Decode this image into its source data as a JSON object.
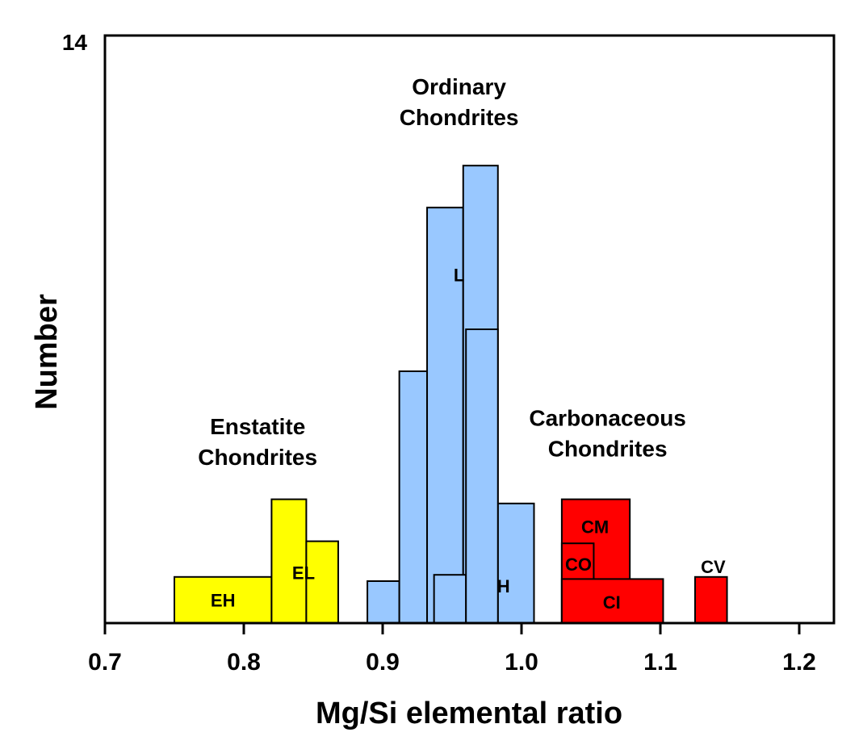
{
  "chart_data": {
    "type": "histogram",
    "title": "",
    "xlabel": "Mg/Si elemental ratio",
    "ylabel": "Number",
    "xlim": [
      0.7,
      1.225
    ],
    "ylim": [
      0,
      14
    ],
    "y_tick_labels": [
      "14"
    ],
    "x_tick_labels": [
      "0.7",
      "0.8",
      "0.9",
      "1.0",
      "1.1",
      "1.2"
    ],
    "x_ticks": [
      0.7,
      0.8,
      0.9,
      1.0,
      1.1,
      1.2
    ],
    "grid": false,
    "groups": [
      {
        "label_lines": [
          "Enstatite",
          "Chondrites"
        ],
        "label_pos": {
          "x": 0.81,
          "y": 4.5
        },
        "color": "#ffff00"
      },
      {
        "label_lines": [
          "Ordinary",
          "Chondrites"
        ],
        "label_pos": {
          "x": 0.955,
          "y": 12.6
        },
        "color": "#99c8ff"
      },
      {
        "label_lines": [
          "Carbonaceous",
          "Chondrites"
        ],
        "label_pos": {
          "x": 1.062,
          "y": 4.7
        },
        "color": "#ff0000"
      }
    ],
    "series": [
      {
        "name": "EH",
        "group": "Enstatite Chondrites",
        "color": "#ffff00",
        "bins": [
          {
            "x0": 0.75,
            "x1": 0.82,
            "y": 1.1
          }
        ],
        "label_pos": {
          "x": 0.785,
          "y": 0.55
        }
      },
      {
        "name": "EL",
        "group": "Enstatite Chondrites",
        "color": "#ffff00",
        "bins": [
          {
            "x0": 0.82,
            "x1": 0.845,
            "y": 2.95
          },
          {
            "x0": 0.845,
            "x1": 0.868,
            "y": 1.95
          }
        ],
        "label_pos": {
          "x": 0.843,
          "y": 1.2
        }
      },
      {
        "name": "L",
        "group": "Ordinary Chondrites",
        "color": "#99c8ff",
        "bins": [
          {
            "x0": 0.889,
            "x1": 0.912,
            "y": 1.0
          },
          {
            "x0": 0.912,
            "x1": 0.932,
            "y": 6.0
          },
          {
            "x0": 0.932,
            "x1": 0.958,
            "y": 9.9
          },
          {
            "x0": 0.958,
            "x1": 0.983,
            "y": 10.9
          },
          {
            "x0": 0.983,
            "x1": 1.009,
            "y": 2.85
          }
        ],
        "label_pos": {
          "x": 0.955,
          "y": 8.3
        }
      },
      {
        "name": "H",
        "group": "Ordinary Chondrites",
        "color": "#99c8ff",
        "bins": [
          {
            "x0": 0.937,
            "x1": 0.96,
            "y": 1.15
          },
          {
            "x0": 0.96,
            "x1": 0.983,
            "y": 7.0
          }
        ],
        "label_pos": {
          "x": 0.987,
          "y": 0.88
        }
      },
      {
        "name": "CM",
        "group": "Carbonaceous Chondrites",
        "color": "#ff0000",
        "bins": [
          {
            "x0": 1.029,
            "x1": 1.078,
            "y": 2.95
          }
        ],
        "label_pos": {
          "x": 1.053,
          "y": 2.3
        }
      },
      {
        "name": "CO",
        "group": "Carbonaceous Chondrites",
        "color": "#ff0000",
        "bins": [
          {
            "x0": 1.029,
            "x1": 1.052,
            "y": 1.9
          }
        ],
        "label_pos": {
          "x": 1.041,
          "y": 1.4
        }
      },
      {
        "name": "CI",
        "group": "Carbonaceous Chondrites",
        "color": "#ff0000",
        "bins": [
          {
            "x0": 1.029,
            "x1": 1.102,
            "y": 1.05
          }
        ],
        "label_pos": {
          "x": 1.065,
          "y": 0.5
        }
      },
      {
        "name": "CV",
        "group": "Carbonaceous Chondrites",
        "color": "#ff0000",
        "bins": [
          {
            "x0": 1.125,
            "x1": 1.148,
            "y": 1.1
          }
        ],
        "label_pos": {
          "x": 1.138,
          "y": 1.35
        }
      }
    ]
  }
}
